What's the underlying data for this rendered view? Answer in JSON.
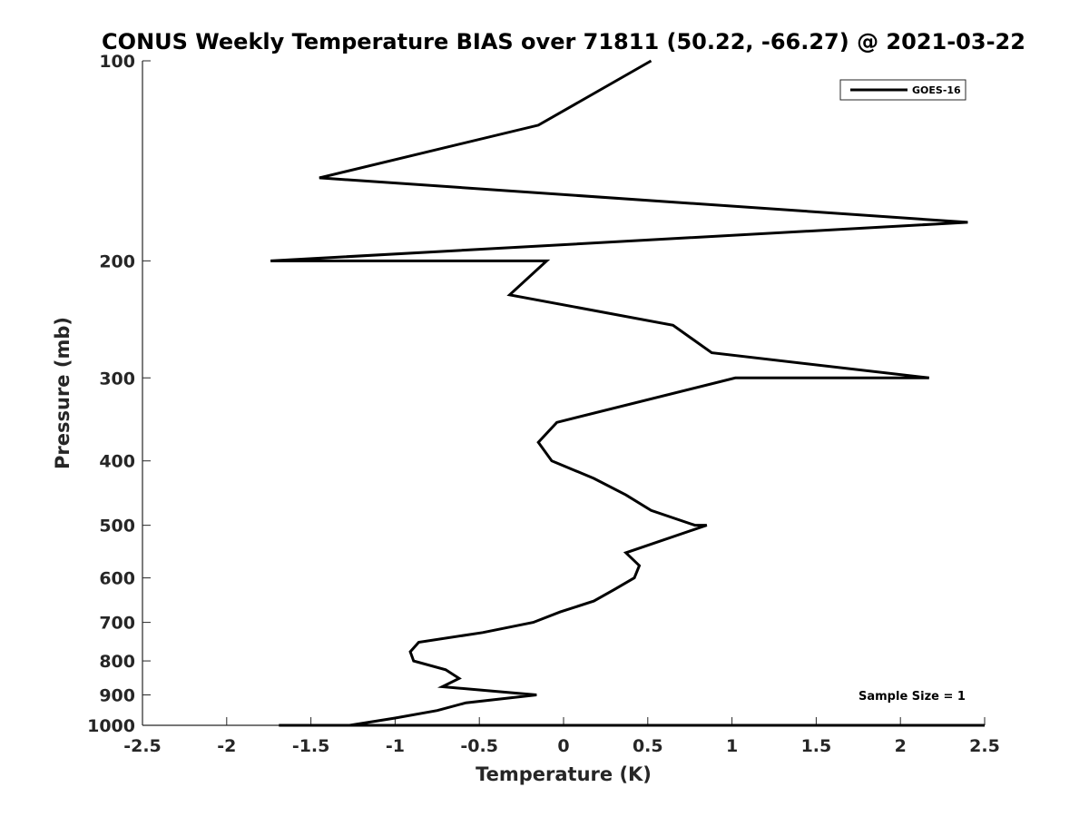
{
  "chart_data": {
    "type": "line",
    "title": "CONUS Weekly Temperature BIAS over 71811 (50.22, -66.27) @ 2021-03-22",
    "xlabel": "Temperature (K)",
    "ylabel": "Pressure (mb)",
    "xlim": [
      -2.5,
      2.5
    ],
    "ylim": [
      100,
      1000
    ],
    "y_scale": "log",
    "y_reversed": true,
    "grid": false,
    "xticks": [
      -2.5,
      -2,
      -1.5,
      -1,
      -0.5,
      0,
      0.5,
      1,
      1.5,
      2,
      2.5
    ],
    "xtick_labels": [
      "-2.5",
      "-2",
      "-1.5",
      "-1",
      "-0.5",
      "0",
      "0.5",
      "1",
      "1.5",
      "2",
      "2.5"
    ],
    "yticks": [
      100,
      200,
      300,
      400,
      500,
      600,
      700,
      800,
      900,
      1000
    ],
    "ytick_labels": [
      "100",
      "200",
      "300",
      "400",
      "500",
      "600",
      "700",
      "800",
      "900",
      "1000"
    ],
    "legend_position": "top-right",
    "series": [
      {
        "name": "GOES-16",
        "color": "#000000",
        "points": [
          [
            0.52,
            100
          ],
          [
            -0.15,
            125
          ],
          [
            -1.45,
            150
          ],
          [
            2.4,
            175
          ],
          [
            -1.74,
            200
          ],
          [
            -0.1,
            200
          ],
          [
            -0.32,
            225
          ],
          [
            0.65,
            250
          ],
          [
            0.88,
            275
          ],
          [
            2.17,
            300
          ],
          [
            1.02,
            300
          ],
          [
            -0.04,
            350
          ],
          [
            -0.15,
            375
          ],
          [
            -0.07,
            400
          ],
          [
            -0.07,
            400
          ],
          [
            0.18,
            425
          ],
          [
            0.37,
            450
          ],
          [
            0.52,
            475
          ],
          [
            0.78,
            500
          ],
          [
            0.85,
            500
          ],
          [
            0.37,
            550
          ],
          [
            0.45,
            575
          ],
          [
            0.42,
            600
          ],
          [
            0.3,
            625
          ],
          [
            0.18,
            650
          ],
          [
            -0.02,
            675
          ],
          [
            -0.18,
            700
          ],
          [
            -0.48,
            725
          ],
          [
            -0.86,
            750
          ],
          [
            -0.91,
            775
          ],
          [
            -0.89,
            800
          ],
          [
            -0.7,
            825
          ],
          [
            -0.62,
            850
          ],
          [
            -0.72,
            875
          ],
          [
            -0.16,
            900
          ],
          [
            -0.58,
            925
          ],
          [
            -0.75,
            950
          ],
          [
            -1.0,
            975
          ],
          [
            -1.27,
            1000
          ],
          [
            -1.69,
            1000
          ],
          [
            -1.27,
            1000
          ],
          [
            2.5,
            1000
          ]
        ]
      }
    ],
    "annotation": "Sample Size = 1"
  }
}
